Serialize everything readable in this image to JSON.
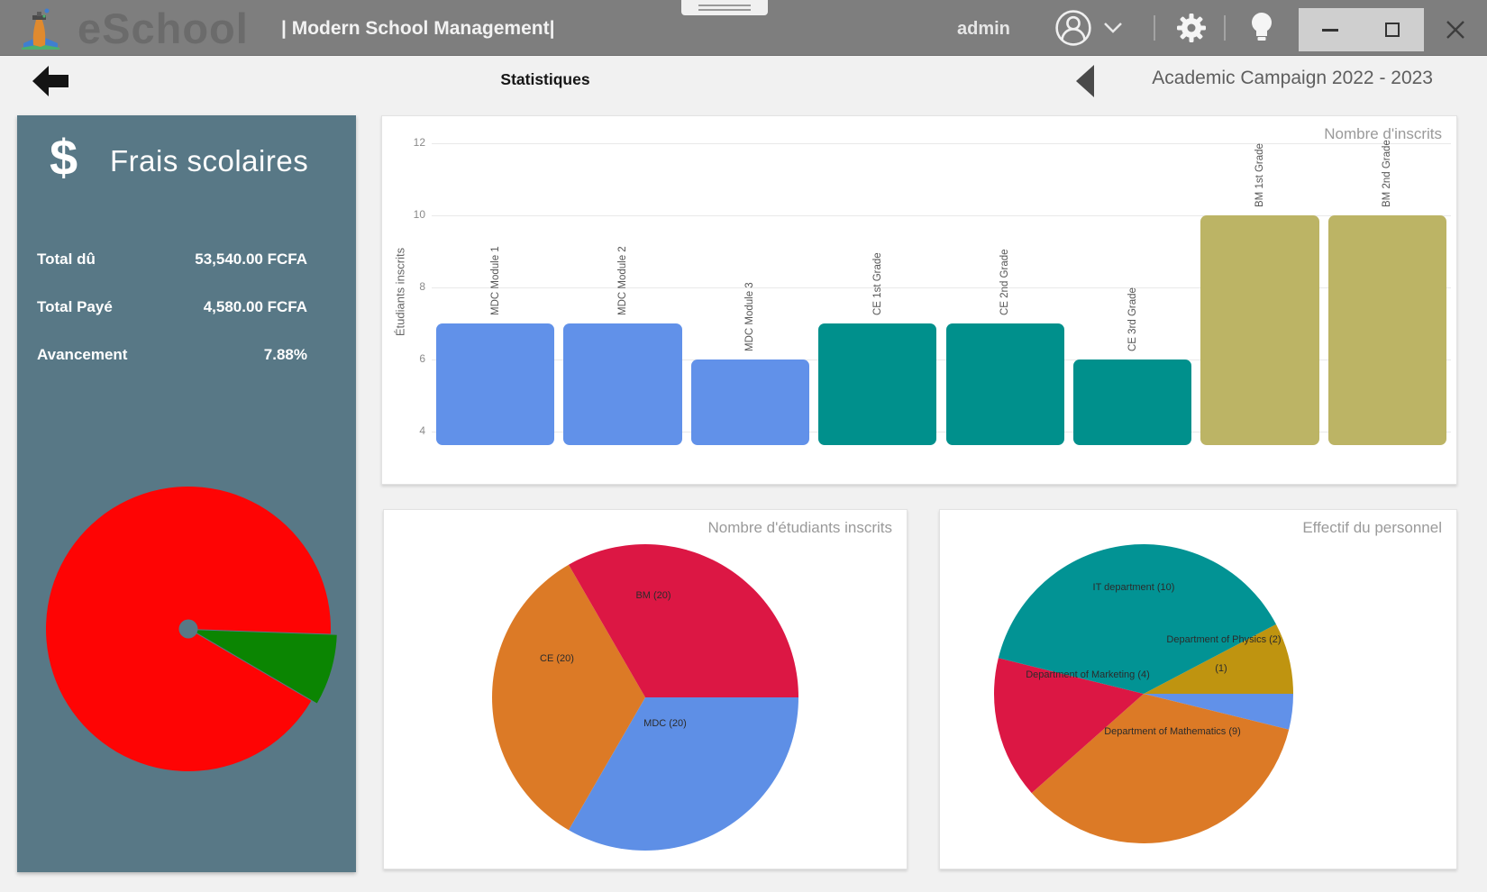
{
  "titlebar": {
    "app_name": "eSchool",
    "tagline": "| Modern School Management|",
    "username": "admin"
  },
  "navbar": {
    "page_title": "Statistiques",
    "campaign_label": "Academic Campaign 2022 - 2023"
  },
  "fees_panel": {
    "icon": "$",
    "title": "Frais scolaires",
    "rows": [
      {
        "label": "Total dû",
        "value": "53,540.00 FCFA"
      },
      {
        "label": "Total Payé",
        "value": "4,580.00 FCFA"
      },
      {
        "label": "Avancement",
        "value": "7.88%"
      }
    ]
  },
  "colors": {
    "titlebar_bg": "#7e7e7e",
    "page_bg": "#f1f1f1",
    "panel_bg": "#587886",
    "bar_blue": "#6191e9",
    "bar_teal": "#00908c",
    "bar_olive": "#bcb465",
    "crimson": "#dc1744",
    "orange": "#dc7a26",
    "staff_teal": "#029394",
    "mustard": "#bf9410",
    "fees_red": "#fe0404",
    "fees_green": "#0b8502"
  },
  "chart_data": [
    {
      "id": "fees-progress-pie",
      "type": "pie",
      "title": "",
      "start_angle": -2,
      "show_labels": false,
      "center_dot_color": "#587886",
      "slices": [
        {
          "label": "Payé 7.88%",
          "value": 7.88,
          "color": "#0b8502",
          "radius_scale": 1.05,
          "stroke": "#587886"
        },
        {
          "label": "Dû 92.12%",
          "value": 92.12,
          "color": "#fe0404"
        }
      ]
    },
    {
      "id": "enrollment-bar",
      "type": "bar",
      "title": "Nombre d'inscrits",
      "ylabel": "Étudiants inscrits",
      "categories": [
        "MDC Module 1",
        "MDC Module 2",
        "MDC Module 3",
        "CE 1st Grade",
        "CE 2nd Grade",
        "CE 3rd Grade",
        "BM 1st Grade",
        "BM 2nd Grade"
      ],
      "values": [
        7,
        7,
        6,
        7,
        7,
        6,
        10,
        10
      ],
      "bar_colors": [
        "#6191e9",
        "#6191e9",
        "#6191e9",
        "#00908c",
        "#00908c",
        "#00908c",
        "#bcb465",
        "#bcb465"
      ],
      "yticks": [
        4,
        6,
        8,
        10,
        12
      ],
      "ylim": [
        3.625,
        12.125
      ],
      "grid": true,
      "legend": false
    },
    {
      "id": "students-pie",
      "type": "pie",
      "title": "Nombre d'étudiants inscrits",
      "start_angle": 0,
      "slices": [
        {
          "label": "MDC (20)",
          "value": 20,
          "color": "#5e8fe6",
          "label_pos": [
            312,
            240
          ]
        },
        {
          "label": "CE (20)",
          "value": 20,
          "color": "#dc7a26",
          "label_pos": [
            192,
            168
          ]
        },
        {
          "label": "BM (20)",
          "value": 20,
          "color": "#dc1744",
          "label_pos": [
            299,
            98
          ]
        }
      ]
    },
    {
      "id": "staff-pie",
      "type": "pie",
      "title": "Effectif du personnel",
      "start_angle": 27.7,
      "slices": [
        {
          "label": "Department of Physics (2)",
          "value": 2,
          "color": "#bf9410",
          "label_pos": [
            315,
            147
          ]
        },
        {
          "label": "(1)",
          "value": 1,
          "color": "#6191e9",
          "label_pos": [
            312,
            179
          ]
        },
        {
          "label": "Department of Mathematics (9)",
          "value": 9,
          "color": "#dc7a26",
          "label_pos": [
            258,
            249
          ]
        },
        {
          "label": "Department of Marketing (4)",
          "value": 4,
          "color": "#dc1744",
          "label_pos": [
            164,
            186
          ]
        },
        {
          "label": "IT department (10)",
          "value": 10,
          "color": "#029394",
          "label_pos": [
            215,
            89
          ]
        }
      ]
    }
  ]
}
